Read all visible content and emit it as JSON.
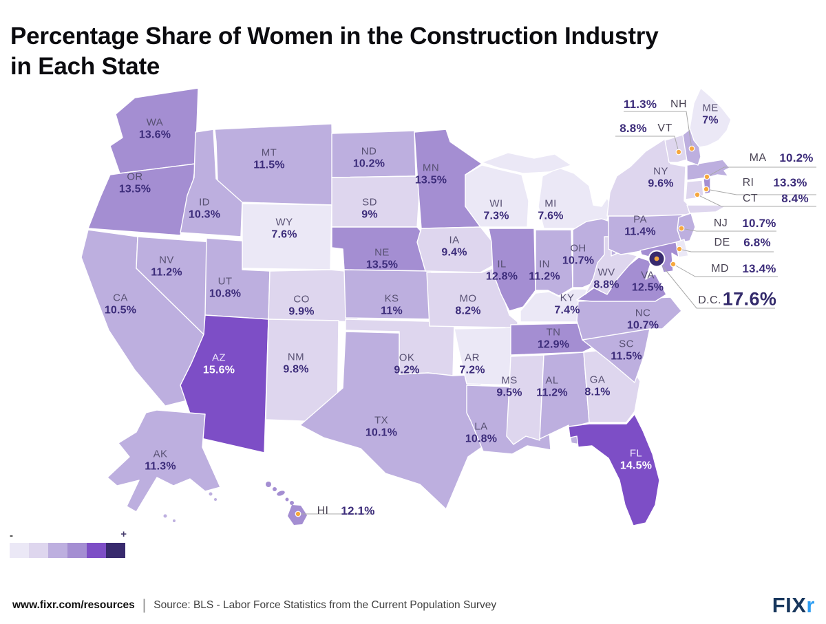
{
  "title": "Percentage Share of Women in the Construction Industry in Each State",
  "title_lines": [
    "Percentage Share of Women in the Construction Industry",
    "in Each State"
  ],
  "legend": {
    "minus": "-",
    "plus": "+"
  },
  "footer": {
    "site": "www.fixr.com/resources",
    "separator": "|",
    "source": "Source: BLS - Labor Force Statistics from the Current Population Survey",
    "logo": {
      "text_dark": "FIX",
      "text_light": "r",
      "color_dark": "#17365c",
      "color_light": "#2d9df2"
    }
  },
  "chart_data": {
    "type": "heatmap",
    "subtype": "choropleth_us_states",
    "title": "Percentage Share of Women in the Construction Industry in Each State",
    "unit": "%",
    "color_scale": {
      "thresholds": [
        8,
        10,
        12,
        14,
        16
      ],
      "colors": [
        "#ebe8f6",
        "#ded6ee",
        "#bdafdf",
        "#a48ed2",
        "#7d4ec6",
        "#382a6d"
      ],
      "legend_min_label": "-",
      "legend_max_label": "+"
    },
    "callout_dot_color": "#f6a83e",
    "callout_line_color": "#a8a8a8",
    "states": [
      {
        "abbr": "WA",
        "value": 13.6,
        "display": "13.6%"
      },
      {
        "abbr": "OR",
        "value": 13.5,
        "display": "13.5%"
      },
      {
        "abbr": "CA",
        "value": 10.5,
        "display": "10.5%"
      },
      {
        "abbr": "NV",
        "value": 11.2,
        "display": "11.2%"
      },
      {
        "abbr": "ID",
        "value": 10.3,
        "display": "10.3%"
      },
      {
        "abbr": "MT",
        "value": 11.5,
        "display": "11.5%"
      },
      {
        "abbr": "WY",
        "value": 7.6,
        "display": "7.6%"
      },
      {
        "abbr": "UT",
        "value": 10.8,
        "display": "10.8%"
      },
      {
        "abbr": "CO",
        "value": 9.9,
        "display": "9.9%"
      },
      {
        "abbr": "AZ",
        "value": 15.6,
        "display": "15.6%"
      },
      {
        "abbr": "NM",
        "value": 9.8,
        "display": "9.8%"
      },
      {
        "abbr": "AK",
        "value": 11.3,
        "display": "11.3%"
      },
      {
        "abbr": "HI",
        "value": 12.1,
        "display": "12.1%"
      },
      {
        "abbr": "ND",
        "value": 10.2,
        "display": "10.2%"
      },
      {
        "abbr": "SD",
        "value": 9.0,
        "display": "9%"
      },
      {
        "abbr": "NE",
        "value": 13.5,
        "display": "13.5%"
      },
      {
        "abbr": "KS",
        "value": 11.0,
        "display": "11%"
      },
      {
        "abbr": "OK",
        "value": 9.2,
        "display": "9.2%"
      },
      {
        "abbr": "TX",
        "value": 10.1,
        "display": "10.1%"
      },
      {
        "abbr": "MN",
        "value": 13.5,
        "display": "13.5%"
      },
      {
        "abbr": "IA",
        "value": 9.4,
        "display": "9.4%"
      },
      {
        "abbr": "MO",
        "value": 8.2,
        "display": "8.2%"
      },
      {
        "abbr": "AR",
        "value": 7.2,
        "display": "7.2%"
      },
      {
        "abbr": "LA",
        "value": 10.8,
        "display": "10.8%"
      },
      {
        "abbr": "WI",
        "value": 7.3,
        "display": "7.3%"
      },
      {
        "abbr": "IL",
        "value": 12.8,
        "display": "12.8%"
      },
      {
        "abbr": "MI",
        "value": 7.6,
        "display": "7.6%"
      },
      {
        "abbr": "IN",
        "value": 11.2,
        "display": "11.2%"
      },
      {
        "abbr": "OH",
        "value": 10.7,
        "display": "10.7%"
      },
      {
        "abbr": "KY",
        "value": 7.4,
        "display": "7.4%"
      },
      {
        "abbr": "TN",
        "value": 12.9,
        "display": "12.9%"
      },
      {
        "abbr": "MS",
        "value": 9.5,
        "display": "9.5%"
      },
      {
        "abbr": "AL",
        "value": 11.2,
        "display": "11.2%"
      },
      {
        "abbr": "GA",
        "value": 8.1,
        "display": "8.1%"
      },
      {
        "abbr": "FL",
        "value": 14.5,
        "display": "14.5%"
      },
      {
        "abbr": "SC",
        "value": 11.5,
        "display": "11.5%"
      },
      {
        "abbr": "NC",
        "value": 10.7,
        "display": "10.7%"
      },
      {
        "abbr": "VA",
        "value": 12.5,
        "display": "12.5%"
      },
      {
        "abbr": "WV",
        "value": 8.8,
        "display": "8.8%"
      },
      {
        "abbr": "KY2",
        "value": null,
        "display": null
      },
      {
        "abbr": "MD",
        "value": 13.4,
        "display": "13.4%"
      },
      {
        "abbr": "DE",
        "value": 6.8,
        "display": "6.8%"
      },
      {
        "abbr": "NJ",
        "value": 10.7,
        "display": "10.7%"
      },
      {
        "abbr": "PA",
        "value": 11.4,
        "display": "11.4%"
      },
      {
        "abbr": "NY",
        "value": 9.6,
        "display": "9.6%"
      },
      {
        "abbr": "CT",
        "value": 8.4,
        "display": "8.4%"
      },
      {
        "abbr": "RI",
        "value": 13.3,
        "display": "13.3%"
      },
      {
        "abbr": "MA",
        "value": 10.2,
        "display": "10.2%"
      },
      {
        "abbr": "VT",
        "value": 8.8,
        "display": "8.8%"
      },
      {
        "abbr": "NH",
        "value": 11.3,
        "display": "11.3%"
      },
      {
        "abbr": "ME",
        "value": 7.0,
        "display": "7%"
      },
      {
        "abbr": "D.C.",
        "value": 17.6,
        "display": "17.6%"
      }
    ]
  }
}
